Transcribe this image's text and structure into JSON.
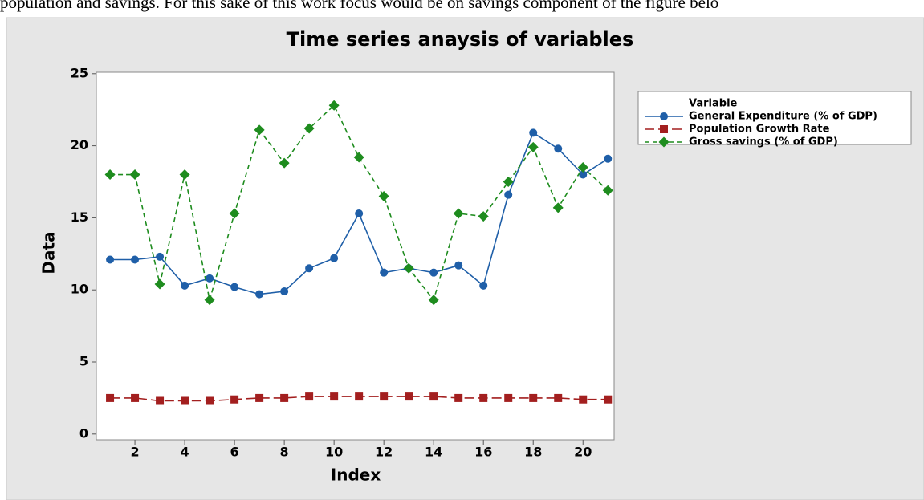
{
  "page_text": "population and savings. For this sake of this work focus would be on savings component of the figure belo",
  "chart_data": {
    "type": "line",
    "title": "Time series anaysis of variables",
    "x_label": "Index",
    "y_label": "Data",
    "legend_title": "Variable",
    "legend": "right",
    "x": [
      1,
      2,
      3,
      4,
      5,
      6,
      7,
      8,
      9,
      10,
      11,
      12,
      13,
      14,
      15,
      16,
      17,
      18,
      19,
      20,
      21
    ],
    "xlim": [
      0.45,
      21.25
    ],
    "xticks": [
      2,
      4,
      6,
      8,
      10,
      12,
      14,
      16,
      18,
      20
    ],
    "ylim": [
      -0.4,
      25.1
    ],
    "yticks": [
      0,
      5,
      10,
      15,
      20,
      25
    ],
    "series": [
      {
        "name": "General Expenditure (% of GDP)",
        "color": "#1f5fa8",
        "marker": "circle",
        "line_style": "solid",
        "values": [
          12.1,
          12.1,
          12.3,
          10.3,
          10.8,
          10.2,
          9.7,
          9.9,
          11.5,
          12.2,
          15.3,
          11.2,
          11.5,
          11.2,
          11.7,
          10.3,
          16.6,
          20.9,
          19.8,
          18.0,
          19.1
        ]
      },
      {
        "name": "Population Growth Rate",
        "color": "#a31f1f",
        "marker": "square",
        "line_style": "long-dash",
        "values": [
          2.5,
          2.5,
          2.3,
          2.3,
          2.3,
          2.4,
          2.5,
          2.5,
          2.6,
          2.6,
          2.6,
          2.6,
          2.6,
          2.6,
          2.5,
          2.5,
          2.5,
          2.5,
          2.5,
          2.4,
          2.4
        ]
      },
      {
        "name": "Gross savings (% of GDP)",
        "color": "#1e8c1e",
        "marker": "diamond",
        "line_style": "dash",
        "values": [
          18.0,
          18.0,
          10.4,
          18.0,
          9.3,
          15.3,
          21.1,
          18.8,
          21.2,
          22.8,
          19.2,
          16.5,
          11.5,
          9.3,
          15.3,
          15.1,
          17.5,
          19.9,
          15.7,
          18.5,
          16.9
        ]
      }
    ]
  }
}
